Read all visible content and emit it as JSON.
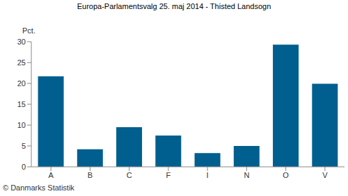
{
  "chart_data": {
    "type": "bar",
    "title": "Europa-Parlamentsvalg 25. maj 2014 - Thisted Landsogn",
    "y_label": "Pct.",
    "annotations": [
      "© Danmarks Statistik"
    ],
    "categories": [
      "A",
      "B",
      "C",
      "F",
      "I",
      "N",
      "O",
      "V"
    ],
    "values": [
      21.7,
      4.2,
      9.5,
      7.5,
      3.3,
      5.0,
      29.3,
      19.9
    ],
    "color": "#005f8e",
    "ylim": [
      0,
      30
    ],
    "yticks": [
      0,
      5,
      10,
      15,
      20,
      25,
      30
    ],
    "grid": false
  }
}
